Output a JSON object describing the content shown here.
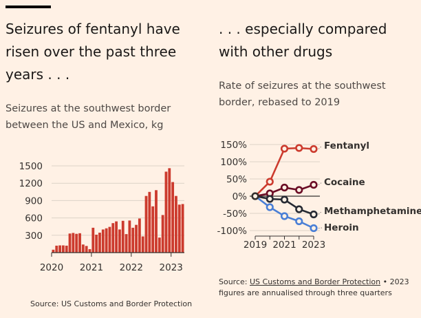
{
  "left": {
    "headline": "Seizures of fentanyl have risen over the past three years . . .",
    "subtitle": "Seizures at the southwest border between the US and Mexico, kg",
    "source": "Source: US Customs and Border Protection"
  },
  "right": {
    "headline": ". . . especially compared with other drugs",
    "subtitle": "Rate of seizures at the southwest border, rebased to 2019",
    "source_prefix": "Source: ",
    "source_link": "US Customs and Border Protection",
    "source_note": " • 2023 figures are annualised through three quarters"
  },
  "colors": {
    "bar": "#cc3b2e",
    "fentanyl": "#cc3b2e",
    "cocaine": "#6b0d25",
    "methamphetamine": "#262a33",
    "heroin": "#4a7fd6",
    "grid": "#dcd2c7"
  },
  "chart_data": [
    {
      "type": "bar",
      "ylim": [
        0,
        1500
      ],
      "yticks": [
        300,
        600,
        900,
        1200,
        1500
      ],
      "xticks": [
        "2020",
        "2021",
        "2022",
        "2023"
      ],
      "values": [
        50,
        120,
        125,
        125,
        120,
        330,
        340,
        325,
        335,
        140,
        115,
        60,
        430,
        310,
        345,
        400,
        420,
        445,
        510,
        540,
        400,
        550,
        320,
        555,
        430,
        480,
        590,
        280,
        980,
        1050,
        800,
        1080,
        260,
        650,
        1400,
        1460,
        1220,
        980,
        830,
        840
      ]
    },
    {
      "type": "line",
      "x": [
        2019,
        2020,
        2021,
        2022,
        2023
      ],
      "xticks": [
        "2019",
        "2021",
        "2023"
      ],
      "ylim": [
        -100,
        150
      ],
      "yticks": [
        "150%",
        "100%",
        "50%",
        "0%",
        "-50%",
        "-100%"
      ],
      "ytick_values": [
        150,
        100,
        50,
        0,
        -50,
        -100
      ],
      "series": [
        {
          "name": "Fentanyl",
          "values": [
            0,
            42,
            138,
            140,
            137
          ]
        },
        {
          "name": "Cocaine",
          "values": [
            0,
            8,
            25,
            18,
            33
          ]
        },
        {
          "name": "Methamphetamine",
          "values": [
            0,
            -8,
            -10,
            -38,
            -53
          ]
        },
        {
          "name": "Heroin",
          "values": [
            0,
            -32,
            -58,
            -73,
            -93
          ]
        }
      ]
    }
  ]
}
